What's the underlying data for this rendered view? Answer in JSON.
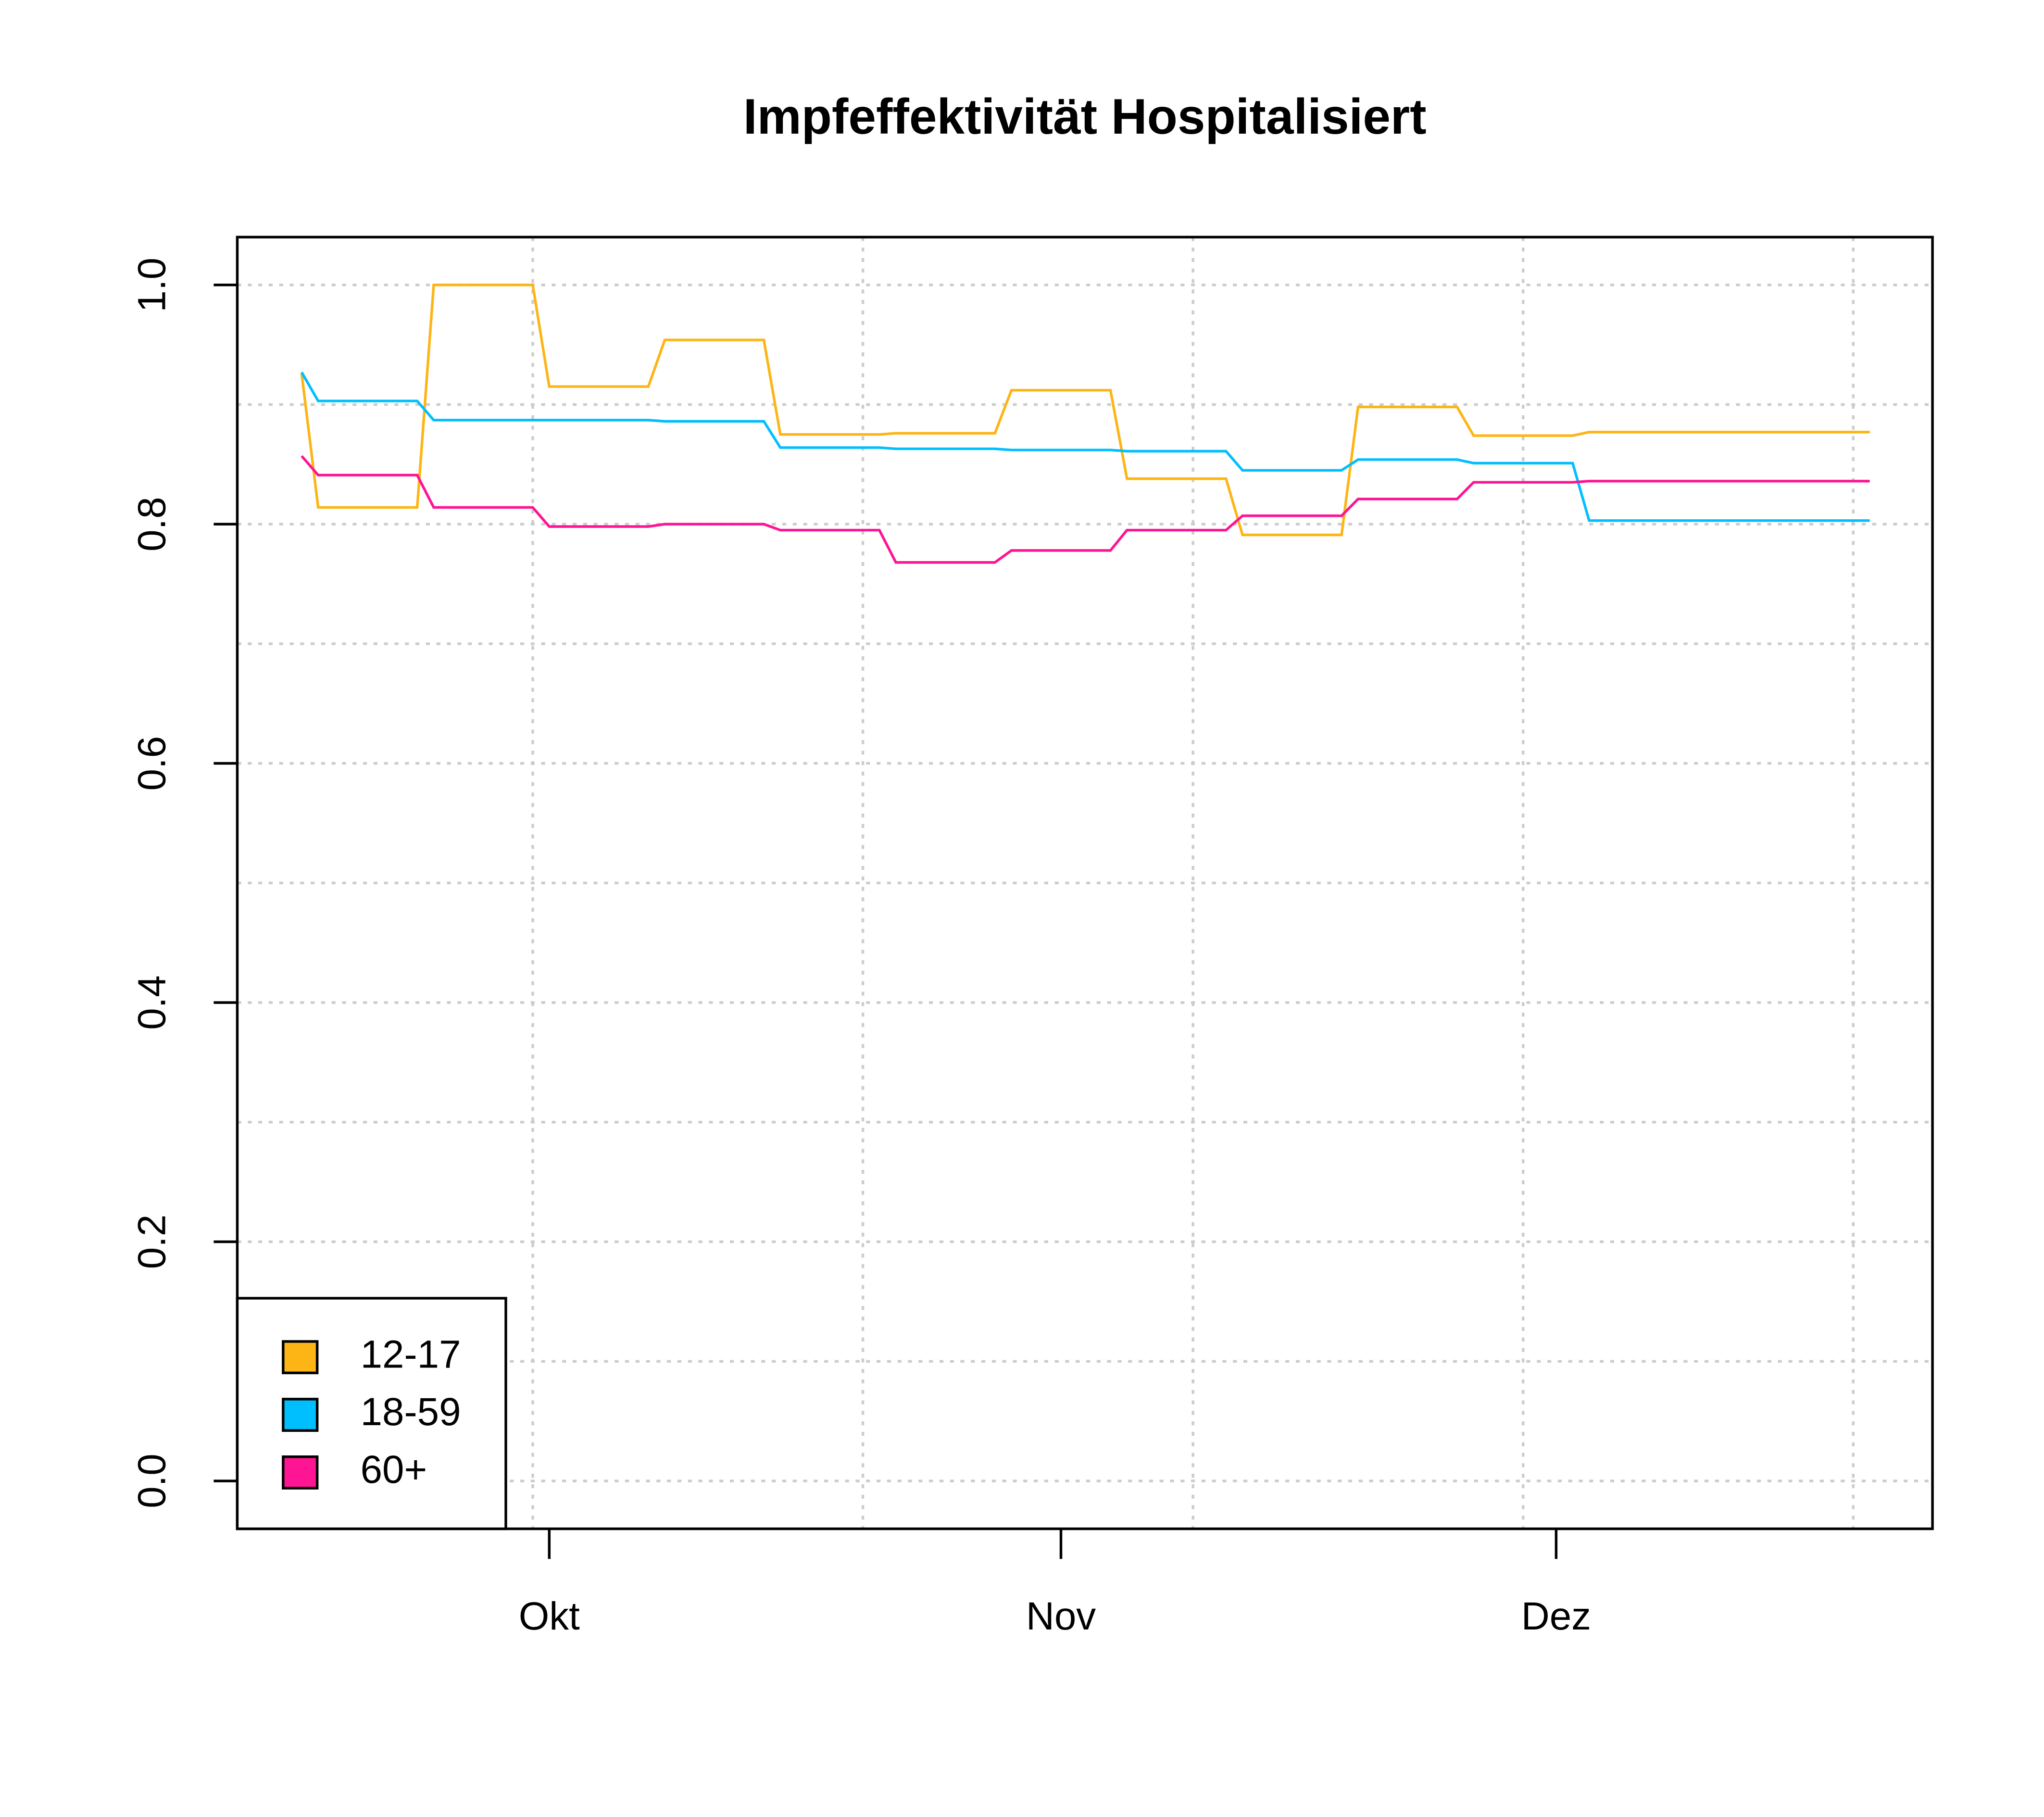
{
  "chart_data": {
    "type": "line",
    "title": "Impfeffektivität Hospitalisiert",
    "x": [
      0,
      1,
      7,
      8,
      14,
      15,
      21,
      22,
      28,
      29,
      35,
      36,
      42,
      43,
      49,
      50,
      56,
      57,
      63,
      64,
      70,
      71,
      77,
      78,
      95
    ],
    "series": [
      {
        "name": "12-17",
        "color": "#FDB515",
        "values": [
          0.926,
          0.814,
          0.814,
          1.0,
          1.0,
          0.915,
          0.915,
          0.954,
          0.954,
          0.875,
          0.875,
          0.876,
          0.876,
          0.912,
          0.912,
          0.838,
          0.838,
          0.791,
          0.791,
          0.898,
          0.898,
          0.874,
          0.874,
          0.877,
          0.877
        ]
      },
      {
        "name": "18-59",
        "color": "#00BFFF",
        "values": [
          0.927,
          0.903,
          0.903,
          0.887,
          0.887,
          0.887,
          0.887,
          0.886,
          0.886,
          0.864,
          0.864,
          0.863,
          0.863,
          0.862,
          0.862,
          0.861,
          0.861,
          0.845,
          0.845,
          0.854,
          0.854,
          0.851,
          0.851,
          0.803,
          0.803
        ]
      },
      {
        "name": "60+",
        "color": "#FF1493",
        "values": [
          0.857,
          0.841,
          0.841,
          0.814,
          0.814,
          0.798,
          0.798,
          0.8,
          0.8,
          0.795,
          0.795,
          0.768,
          0.768,
          0.778,
          0.778,
          0.795,
          0.795,
          0.807,
          0.807,
          0.821,
          0.821,
          0.835,
          0.835,
          0.836,
          0.836
        ]
      }
    ],
    "xlim": [
      -3.9,
      98.8
    ],
    "xticks": [
      {
        "value": 15,
        "label": "Okt"
      },
      {
        "value": 46,
        "label": "Nov"
      },
      {
        "value": 76,
        "label": "Dez"
      }
    ],
    "xgrid": [
      14,
      34,
      54,
      74,
      94
    ],
    "ylim": [
      -0.04,
      1.04
    ],
    "yticks": [
      {
        "value": 0,
        "label": "0.0"
      },
      {
        "value": 0.2,
        "label": "0.2"
      },
      {
        "value": 0.4,
        "label": "0.4"
      },
      {
        "value": 0.6,
        "label": "0.6"
      },
      {
        "value": 0.8,
        "label": "0.8"
      },
      {
        "value": 1,
        "label": "1.0"
      }
    ],
    "ygrid": [
      0,
      0.1,
      0.2,
      0.3,
      0.4,
      0.5,
      0.6,
      0.7,
      0.8,
      0.9,
      1
    ],
    "grid": true,
    "legend": "bottomleft"
  }
}
